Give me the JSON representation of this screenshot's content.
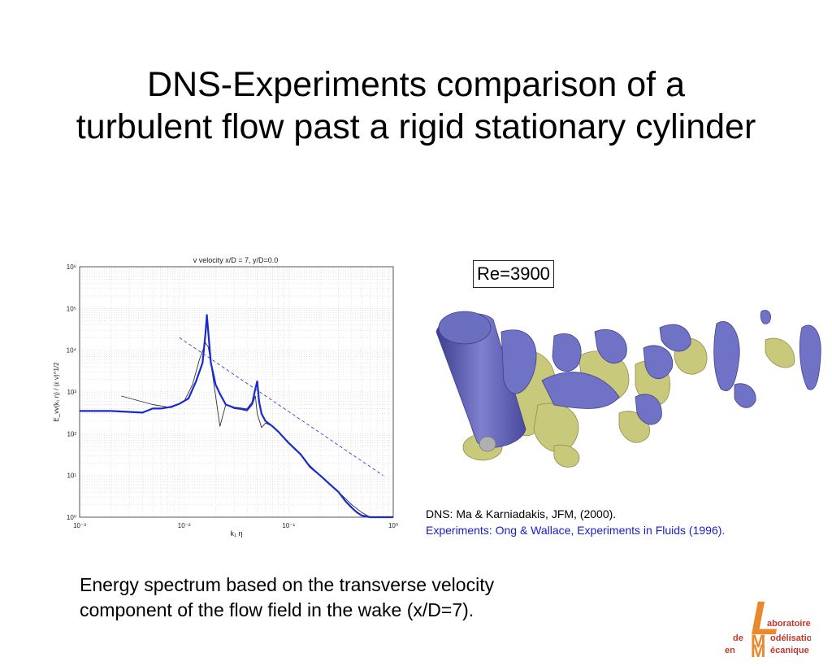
{
  "slide": {
    "title_lines": [
      "DNS-Experiments comparison of a",
      "turbulent flow past a rigid stationary cylinder"
    ],
    "re_label": "Re=3900",
    "refs": {
      "dns": "DNS: Ma & Karniadakis, JFM, (2000).",
      "experiments": "Experiments: Ong & Wallace, Experiments in Fluids (1996)."
    },
    "caption_lines": [
      "Energy spectrum based on the transverse velocity",
      "component of the flow field in the wake (x/D=7)."
    ],
    "logo": {
      "big_letters": [
        "L",
        "M",
        "M"
      ],
      "words": [
        "aboratoire",
        "de",
        "odélisation",
        "en",
        "écanique"
      ]
    }
  },
  "chart_data": {
    "type": "line",
    "title": "v velocity x/D = 7, y/D=0.0",
    "xlabel": "k₁ η",
    "ylabel": "E_vv(k₁ η) / (ε ν)^1/2",
    "xscale": "log",
    "yscale": "log",
    "xlim": [
      0.001,
      1
    ],
    "ylim": [
      1,
      1000000
    ],
    "x_ticks": [
      "10⁻³",
      "10⁻²",
      "10⁻¹",
      "10⁰"
    ],
    "y_ticks": [
      "10⁰",
      "10¹",
      "10²",
      "10³",
      "10⁴",
      "10⁵",
      "10⁶"
    ],
    "grid": true,
    "colors": {
      "dns": "#1a2ad0",
      "experiments": "#333333",
      "slope_line": "#3344cc"
    },
    "series": [
      {
        "x": [
          0.001,
          0.002,
          0.004,
          0.005,
          0.006,
          0.0075,
          0.009,
          0.011,
          0.013,
          0.015,
          0.016,
          0.0165,
          0.017,
          0.018,
          0.02,
          0.022,
          0.025,
          0.03,
          0.035,
          0.04,
          0.045,
          0.048,
          0.05,
          0.052,
          0.055,
          0.06,
          0.07,
          0.08,
          0.1,
          0.13,
          0.16,
          0.2,
          0.25,
          0.3,
          0.35,
          0.4,
          0.45,
          0.5,
          0.6,
          0.7,
          0.8,
          1.0
        ],
        "y": [
          350,
          350,
          320,
          400,
          400,
          440,
          520,
          700,
          1800,
          5000,
          25000,
          70000,
          28000,
          5000,
          1500,
          900,
          500,
          420,
          400,
          380,
          560,
          1200,
          1800,
          600,
          300,
          200,
          150,
          110,
          60,
          32,
          16,
          10,
          6,
          4,
          2.4,
          1.7,
          1.3,
          1.1,
          1.0,
          1.0,
          1.0,
          1.0
        ]
      },
      {
        "x": [
          0.0025,
          0.005,
          0.0075,
          0.01,
          0.012,
          0.014,
          0.016,
          0.017,
          0.018,
          0.02,
          0.022,
          0.025,
          0.03,
          0.035,
          0.04,
          0.045,
          0.048,
          0.05,
          0.055,
          0.06,
          0.07,
          0.09,
          0.12,
          0.15,
          0.2,
          0.3,
          0.4,
          0.5,
          0.6,
          0.7
        ],
        "y": [
          800,
          500,
          420,
          600,
          1500,
          6000,
          15000,
          12000,
          5000,
          800,
          150,
          500,
          400,
          380,
          350,
          500,
          800,
          300,
          140,
          180,
          150,
          80,
          40,
          20,
          10,
          4,
          2,
          1.3,
          1.0,
          1.0
        ]
      },
      {
        "x": [
          0.009,
          0.8
        ],
        "y": [
          20000,
          10
        ]
      }
    ]
  }
}
